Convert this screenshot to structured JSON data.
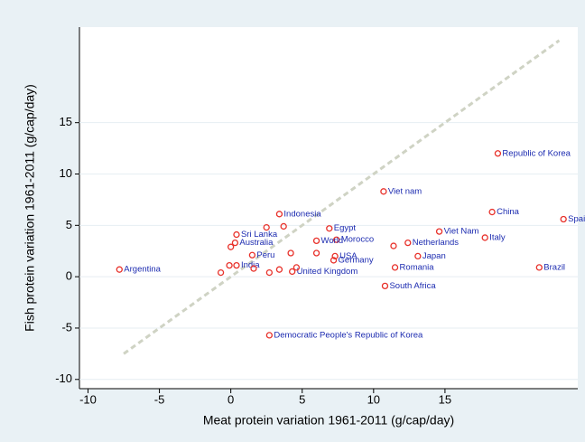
{
  "chart_data": {
    "type": "scatter",
    "x_label": "Meat protein variation 1961-2011 (g/cap/day)",
    "y_label": "Fish protein variation 1961-2011 (g/cap/day)",
    "xlim": [
      -10.6,
      24.3
    ],
    "ylim": [
      -10.9,
      24.3
    ],
    "xticks": [
      -10,
      -5,
      0,
      5,
      10,
      15
    ],
    "yticks": [
      -10,
      -5,
      0,
      5,
      10,
      15
    ],
    "grid": true,
    "marker_color": "#e8312a",
    "label_color": "#1c2bb0",
    "line_color": "#cfd3c4",
    "reference_line": {
      "x": [
        -7.5,
        23
      ],
      "y": [
        -7.5,
        23
      ]
    },
    "x": [
      -7.8,
      2.7,
      18.7,
      10.7,
      18.3,
      23.3,
      21.6,
      17.8,
      14.6,
      12.4,
      13.1,
      11.5,
      10.8,
      6.9,
      7.4,
      6.0,
      7.3,
      7.2,
      4.3,
      3.4,
      0.4,
      0.3,
      1.5,
      0.4,
      11.4,
      2.5,
      3.7,
      -0.7,
      -0.1,
      1.6,
      2.7,
      3.4,
      4.2,
      6.0,
      0.0,
      4.6
    ],
    "y": [
      0.7,
      -5.7,
      12.0,
      8.3,
      6.3,
      5.6,
      0.9,
      3.8,
      4.4,
      3.3,
      2.0,
      0.9,
      -0.9,
      4.7,
      3.6,
      3.5,
      2.0,
      1.6,
      0.5,
      6.1,
      4.1,
      3.3,
      2.1,
      1.1,
      3.0,
      4.8,
      4.9,
      0.4,
      1.1,
      0.8,
      0.4,
      0.7,
      2.3,
      2.3,
      2.9,
      0.9
    ],
    "labels": [
      "Argentina",
      "Democratic People's Republic of Korea",
      "Republic of Korea",
      "Viet nam",
      "China",
      "Spain",
      "Brazil",
      "Italy",
      "Viet Nam",
      "Netherlands",
      "Japan",
      "Romania",
      "South Africa",
      "Egypt",
      "Morocco",
      "World",
      "USA",
      "Germany",
      "United Kingdom",
      "Indonesia",
      "Sri Lanka",
      "Australia",
      "Peru",
      "India",
      null,
      null,
      null,
      null,
      null,
      null,
      null,
      null,
      null,
      null,
      null,
      null
    ]
  }
}
